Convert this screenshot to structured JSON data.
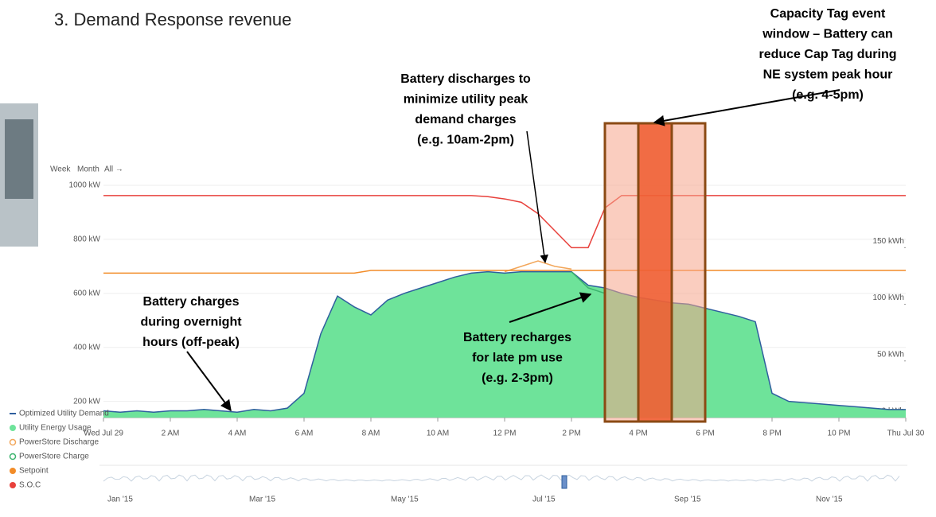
{
  "heading": "3. Demand Response revenue",
  "chart_data": {
    "type": "area",
    "x": [
      0,
      0.5,
      1,
      1.5,
      2,
      2.5,
      3,
      3.5,
      4,
      4.5,
      5,
      5.5,
      6,
      6.5,
      7,
      7.5,
      8,
      8.5,
      9,
      9.5,
      10,
      10.5,
      11,
      11.5,
      12,
      12.5,
      13,
      13.5,
      14,
      14.5,
      15,
      15.5,
      16,
      16.5,
      17,
      17.5,
      18,
      18.5,
      19,
      19.5,
      20,
      20.5,
      21,
      21.5,
      22,
      22.5,
      23,
      23.5,
      24
    ],
    "xlim": [
      0,
      24
    ],
    "xticks": [
      {
        "value": 0,
        "label": "Wed Jul 29"
      },
      {
        "value": 2,
        "label": "2 AM"
      },
      {
        "value": 4,
        "label": "4 AM"
      },
      {
        "value": 6,
        "label": "6 AM"
      },
      {
        "value": 8,
        "label": "8 AM"
      },
      {
        "value": 10,
        "label": "10 AM"
      },
      {
        "value": 12,
        "label": "12 PM"
      },
      {
        "value": 14,
        "label": "2 PM"
      },
      {
        "value": 16,
        "label": "4 PM"
      },
      {
        "value": 18,
        "label": "6 PM"
      },
      {
        "value": 20,
        "label": "8 PM"
      },
      {
        "value": 22,
        "label": "10 PM"
      },
      {
        "value": 24,
        "label": "Thu Jul 30"
      }
    ],
    "ylim": [
      140,
      1000
    ],
    "yticks": [
      {
        "value": 200,
        "label": "200 kW"
      },
      {
        "value": 400,
        "label": "400 kW"
      },
      {
        "value": 600,
        "label": "600 kW"
      },
      {
        "value": 800,
        "label": "800 kW"
      },
      {
        "value": 1000,
        "label": "1000 kW"
      }
    ],
    "y2lim": [
      0,
      205
    ],
    "y2ticks": [
      {
        "value": 0,
        "label": "0 kWh"
      },
      {
        "value": 50,
        "label": "50 kWh"
      },
      {
        "value": 100,
        "label": "100 kWh"
      },
      {
        "value": 150,
        "label": "150 kWh"
      }
    ],
    "range_buttons": [
      "Week",
      "Month",
      "All →"
    ],
    "series": [
      {
        "name": "Optimized Utility Demand",
        "color": "#2f5f9e",
        "style": "line",
        "symbol": "dash",
        "values": [
          165,
          160,
          165,
          160,
          165,
          165,
          170,
          165,
          160,
          170,
          165,
          175,
          230,
          450,
          590,
          550,
          520,
          575,
          600,
          620,
          640,
          660,
          675,
          680,
          675,
          680,
          680,
          680,
          680,
          630,
          620,
          600,
          585,
          575,
          565,
          560,
          545,
          530,
          515,
          495,
          230,
          200,
          195,
          190,
          185,
          180,
          175,
          170,
          170
        ]
      },
      {
        "name": "Utility Energy Usage",
        "color": "#6ee39a",
        "style": "area",
        "symbol": "dot",
        "values": [
          165,
          160,
          165,
          160,
          165,
          165,
          170,
          165,
          160,
          170,
          165,
          175,
          230,
          450,
          590,
          550,
          520,
          575,
          600,
          620,
          640,
          660,
          675,
          680,
          675,
          680,
          680,
          680,
          680,
          630,
          620,
          600,
          585,
          575,
          565,
          560,
          545,
          530,
          515,
          495,
          230,
          200,
          195,
          190,
          185,
          180,
          175,
          170,
          170
        ]
      },
      {
        "name": "PowerStore Discharge",
        "color": "#f2a65a",
        "style": "line",
        "symbol": "ring",
        "values": [
          null,
          null,
          null,
          null,
          null,
          null,
          null,
          null,
          null,
          null,
          null,
          null,
          null,
          null,
          null,
          null,
          null,
          null,
          null,
          null,
          null,
          null,
          null,
          null,
          680,
          700,
          720,
          700,
          690,
          null,
          null,
          null,
          null,
          null,
          null,
          null,
          null,
          null,
          null,
          null,
          null,
          null,
          null,
          null,
          null,
          null,
          null,
          null,
          null
        ]
      },
      {
        "name": "PowerStore Charge",
        "color": "#3cb46e",
        "style": "line",
        "symbol": "ring",
        "values": [
          null,
          null,
          null,
          null,
          null,
          null,
          null,
          null,
          null,
          null,
          null,
          null,
          null,
          null,
          null,
          null,
          null,
          null,
          null,
          null,
          null,
          null,
          null,
          null,
          null,
          null,
          null,
          null,
          680,
          620,
          600,
          null,
          null,
          null,
          null,
          null,
          null,
          null,
          null,
          null,
          null,
          null,
          null,
          null,
          null,
          null,
          null,
          null,
          null
        ]
      },
      {
        "name": "Setpoint",
        "color": "#f28c28",
        "style": "line",
        "symbol": "dot",
        "values": [
          675,
          675,
          675,
          675,
          675,
          675,
          675,
          675,
          675,
          675,
          675,
          675,
          675,
          675,
          675,
          675,
          685,
          685,
          685,
          685,
          685,
          685,
          685,
          685,
          685,
          685,
          685,
          685,
          685,
          685,
          685,
          685,
          685,
          685,
          685,
          685,
          685,
          685,
          685,
          685,
          685,
          685,
          685,
          685,
          685,
          685,
          685,
          685,
          685
        ]
      },
      {
        "name": "S.O.C",
        "color": "#e8413c",
        "style": "line",
        "symbol": "dot",
        "axis": "y2",
        "values": [
          196,
          196,
          196,
          196,
          196,
          196,
          196,
          196,
          196,
          196,
          196,
          196,
          196,
          196,
          196,
          196,
          196,
          196,
          196,
          196,
          196,
          196,
          196,
          195,
          193,
          190,
          180,
          165,
          150,
          150,
          185,
          196,
          196,
          196,
          196,
          196,
          196,
          196,
          196,
          196,
          196,
          196,
          196,
          196,
          196,
          196,
          196,
          196,
          196
        ]
      }
    ],
    "navigator_labels": [
      "Jan '15",
      "Mar '15",
      "May '15",
      "Jul '15",
      "Sep '15",
      "Nov '15"
    ]
  },
  "annotations": [
    {
      "lines": [
        "Capacity Tag event",
        "window – Battery can",
        "reduce Cap Tag during",
        "NE system peak hour",
        "(e.g. 4-5pm)"
      ]
    },
    {
      "lines": [
        "Battery discharges to",
        "minimize utility peak",
        "demand charges",
        "(e.g. 10am-2pm)"
      ]
    },
    {
      "lines": [
        "Battery charges",
        "during overnight",
        "hours (off-peak)"
      ]
    },
    {
      "lines": [
        "Battery recharges",
        "for late pm use",
        "(e.g. 2-3pm)"
      ]
    }
  ]
}
